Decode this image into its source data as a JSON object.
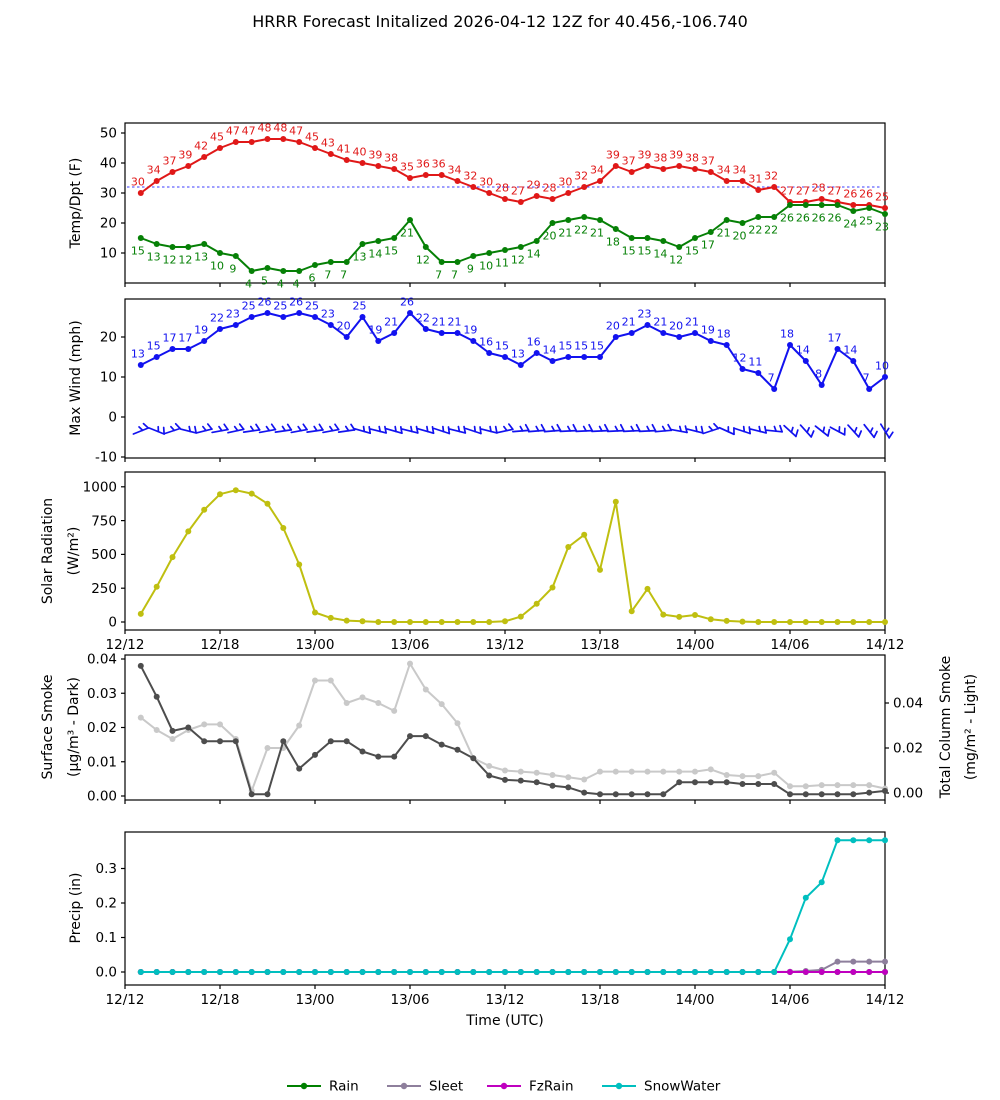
{
  "title": "HRRR Forecast Initalized 2026-04-12 12Z for 40.456,-106.740",
  "chart_data": {
    "type": "line",
    "x_axis": {
      "label": "Time (UTC)",
      "tick_labels": [
        "12/12",
        "12/18",
        "13/00",
        "13/06",
        "13/12",
        "13/18",
        "14/00",
        "14/06",
        "14/12"
      ],
      "tick_hours": [
        0,
        6,
        12,
        18,
        24,
        30,
        36,
        42,
        48
      ],
      "points_start_hour": 1,
      "points_count": 48
    },
    "charts": [
      {
        "id": "temp",
        "ylabel_lines": [
          "Temp/Dpt (F)"
        ],
        "ytick_labels": [
          "10",
          "20",
          "30",
          "40",
          "50"
        ],
        "ytick_values": [
          10,
          20,
          30,
          40,
          50
        ],
        "ylim": [
          0,
          53.3
        ],
        "freezing_line": 32,
        "freezing_line_color": "#3b3bff",
        "show_xticklabels": false,
        "series": [
          {
            "name": "Temperature",
            "color": "#e01818",
            "point_labels": true,
            "label_side": "above",
            "values": [
              30,
              34,
              37,
              39,
              42,
              45,
              47,
              47,
              48,
              48,
              47,
              45,
              43,
              41,
              40,
              39,
              38,
              35,
              36,
              36,
              34,
              32,
              30,
              28,
              27,
              29,
              28,
              30,
              32,
              34,
              39,
              37,
              39,
              38,
              39,
              38,
              37,
              34,
              34,
              31,
              32,
              27,
              27,
              28,
              27,
              26,
              26,
              25
            ]
          },
          {
            "name": "Dewpoint",
            "color": "#068006",
            "point_labels": true,
            "label_side": "below",
            "values": [
              15,
              13,
              12,
              12,
              13,
              10,
              9,
              4,
              5,
              4,
              4,
              6,
              7,
              7,
              13,
              14,
              15,
              21,
              12,
              7,
              7,
              9,
              10,
              11,
              12,
              14,
              20,
              21,
              22,
              21,
              18,
              15,
              15,
              14,
              12,
              15,
              17,
              21,
              20,
              22,
              22,
              26,
              26,
              26,
              26,
              24,
              25,
              23
            ]
          }
        ]
      },
      {
        "id": "wind",
        "ylabel_lines": [
          "Max Wind (mph)"
        ],
        "ytick_labels": [
          "-10",
          "0",
          "10",
          "20"
        ],
        "ytick_values": [
          -10,
          0,
          10,
          20
        ],
        "ylim": [
          -10.25,
          29.5
        ],
        "show_xticklabels": false,
        "series": [
          {
            "name": "Max Wind",
            "color": "#1212ef",
            "point_labels": true,
            "label_side": "above",
            "values": [
              13,
              15,
              17,
              17,
              19,
              22,
              23,
              25,
              26,
              25,
              26,
              25,
              23,
              20,
              25,
              19,
              21,
              26,
              22,
              21,
              21,
              19,
              16,
              15,
              13,
              16,
              14,
              15,
              15,
              15,
              20,
              21,
              23,
              21,
              20,
              21,
              19,
              18,
              12,
              11,
              7,
              18,
              14,
              8,
              17,
              14,
              7,
              10
            ]
          }
        ],
        "barbs": {
          "color": "#1212ef",
          "level_mph": -3.5,
          "angles_deg": [
            22,
            -22,
            18,
            -14,
            14,
            10,
            12,
            8,
            10,
            8,
            10,
            8,
            10,
            8,
            -16,
            -14,
            -16,
            -14,
            -16,
            -18,
            -14,
            -18,
            -14,
            12,
            4,
            4,
            4,
            3,
            3,
            3,
            3,
            3,
            3,
            5,
            -10,
            -14,
            18,
            -24,
            -18,
            -14,
            -6,
            -42,
            -48,
            -38,
            -28,
            -48,
            -52,
            -58
          ]
        }
      },
      {
        "id": "solar",
        "ylabel_lines": [
          "Solar Radiation",
          "(W/m²)"
        ],
        "ytick_labels": [
          "0",
          "250",
          "500",
          "750",
          "1000"
        ],
        "ytick_values": [
          0,
          250,
          500,
          750,
          1000
        ],
        "ylim": [
          -60,
          1120
        ],
        "show_xticklabels": true,
        "series": [
          {
            "name": "Solar Radiation",
            "color": "#bfbf10",
            "point_labels": false,
            "values": [
              60,
              260,
              480,
              670,
              830,
              945,
              975,
              950,
              875,
              695,
              425,
              70,
              30,
              10,
              5,
              0,
              0,
              0,
              0,
              0,
              0,
              0,
              0,
              5,
              40,
              135,
              255,
              555,
              645,
              385,
              890,
              80,
              245,
              55,
              38,
              52,
              20,
              8,
              3,
              0,
              0,
              0,
              0,
              0,
              0,
              0,
              0,
              0
            ]
          }
        ]
      },
      {
        "id": "smoke",
        "ylabel_lines": [
          "Surface Smoke",
          "(μg/m³ - Dark)"
        ],
        "right_ylabel_lines": [
          "Total Column Smoke",
          "(mg/m² - Light)"
        ],
        "ytick_labels": [
          "0.00",
          "0.01",
          "0.02",
          "0.03",
          "0.04"
        ],
        "ytick_values": [
          0.0,
          0.01,
          0.02,
          0.03,
          0.04
        ],
        "right_ytick_labels": [
          "0.00",
          "0.02",
          "0.04"
        ],
        "right_ytick_values": [
          0.0,
          0.02,
          0.04
        ],
        "show_xticklabels": false,
        "series": [
          {
            "name": "Total Column Smoke",
            "color": "#c9c9c9",
            "axis": "right",
            "point_labels": false,
            "values": [
              0.0335,
              0.028,
              0.024,
              0.028,
              0.0305,
              0.0305,
              0.024,
              0.001,
              0.02,
              0.02,
              0.03,
              0.05,
              0.05,
              0.04,
              0.0425,
              0.04,
              0.0365,
              0.0575,
              0.046,
              0.0395,
              0.031,
              0.0155,
              0.012,
              0.01,
              0.0095,
              0.009,
              0.008,
              0.007,
              0.006,
              0.0095,
              0.0095,
              0.0095,
              0.0095,
              0.0095,
              0.0095,
              0.0095,
              0.0105,
              0.008,
              0.0075,
              0.0075,
              0.009,
              0.003,
              0.003,
              0.0035,
              0.0035,
              0.0035,
              0.0035,
              0.002
            ]
          },
          {
            "name": "Surface Smoke",
            "color": "#4d4d4d",
            "axis": "left",
            "point_labels": false,
            "values": [
              0.038,
              0.029,
              0.019,
              0.02,
              0.016,
              0.016,
              0.016,
              0.0005,
              0.0005,
              0.016,
              0.008,
              0.012,
              0.016,
              0.016,
              0.013,
              0.0115,
              0.0115,
              0.0175,
              0.0175,
              0.015,
              0.0135,
              0.011,
              0.006,
              0.0047,
              0.0045,
              0.004,
              0.003,
              0.0025,
              0.001,
              0.0005,
              0.0005,
              0.0005,
              0.0005,
              0.0005,
              0.004,
              0.004,
              0.004,
              0.004,
              0.0035,
              0.0035,
              0.0035,
              0.0005,
              0.0005,
              0.0005,
              0.0005,
              0.0005,
              0.001,
              0.0015
            ]
          }
        ]
      },
      {
        "id": "precip",
        "ylabel_lines": [
          "Precip (in)"
        ],
        "ytick_labels": [
          "0.0",
          "0.1",
          "0.2",
          "0.3"
        ],
        "ytick_values": [
          0.0,
          0.1,
          0.2,
          0.3
        ],
        "ylim": [
          -0.04,
          0.4
        ],
        "show_xticklabels": true,
        "xlabel": "Time (UTC)",
        "series": [
          {
            "name": "Rain",
            "color": "#008000",
            "point_labels": false,
            "values": [
              0,
              0,
              0,
              0,
              0,
              0,
              0,
              0,
              0,
              0,
              0,
              0,
              0,
              0,
              0,
              0,
              0,
              0,
              0,
              0,
              0,
              0,
              0,
              0,
              0,
              0,
              0,
              0,
              0,
              0,
              0,
              0,
              0,
              0,
              0,
              0,
              0,
              0,
              0,
              0,
              0,
              0,
              0,
              0,
              0,
              0,
              0,
              0
            ]
          },
          {
            "name": "Sleet",
            "color": "#8e7f9c",
            "point_labels": false,
            "values": [
              0,
              0,
              0,
              0,
              0,
              0,
              0,
              0,
              0,
              0,
              0,
              0,
              0,
              0,
              0,
              0,
              0,
              0,
              0,
              0,
              0,
              0,
              0,
              0,
              0,
              0,
              0,
              0,
              0,
              0,
              0,
              0,
              0,
              0,
              0,
              0,
              0,
              0,
              0,
              0,
              0,
              0.001,
              0.003,
              0.006,
              0.03,
              0.03,
              0.03,
              0.03
            ]
          },
          {
            "name": "FzRain",
            "color": "#bf00bf",
            "point_labels": false,
            "values": [
              0,
              0,
              0,
              0,
              0,
              0,
              0,
              0,
              0,
              0,
              0,
              0,
              0,
              0,
              0,
              0,
              0,
              0,
              0,
              0,
              0,
              0,
              0,
              0,
              0,
              0,
              0,
              0,
              0,
              0,
              0,
              0,
              0,
              0,
              0,
              0,
              0,
              0,
              0,
              0,
              0,
              0,
              0,
              0,
              0,
              0,
              0,
              0
            ]
          },
          {
            "name": "SnowWater",
            "color": "#00bfbf",
            "point_labels": false,
            "values": [
              0,
              0,
              0,
              0,
              0,
              0,
              0,
              0,
              0,
              0,
              0,
              0,
              0,
              0,
              0,
              0,
              0,
              0,
              0,
              0,
              0,
              0,
              0,
              0,
              0,
              0,
              0,
              0,
              0,
              0,
              0,
              0,
              0,
              0,
              0,
              0,
              0,
              0,
              0,
              0,
              0,
              0.095,
              0.215,
              0.26,
              0.382,
              0.382,
              0.382,
              0.382
            ]
          }
        ]
      }
    ],
    "legend": [
      {
        "label": "Rain",
        "color": "#008000"
      },
      {
        "label": "Sleet",
        "color": "#8e7f9c"
      },
      {
        "label": "FzRain",
        "color": "#bf00bf"
      },
      {
        "label": "SnowWater",
        "color": "#00bfbf"
      }
    ]
  }
}
